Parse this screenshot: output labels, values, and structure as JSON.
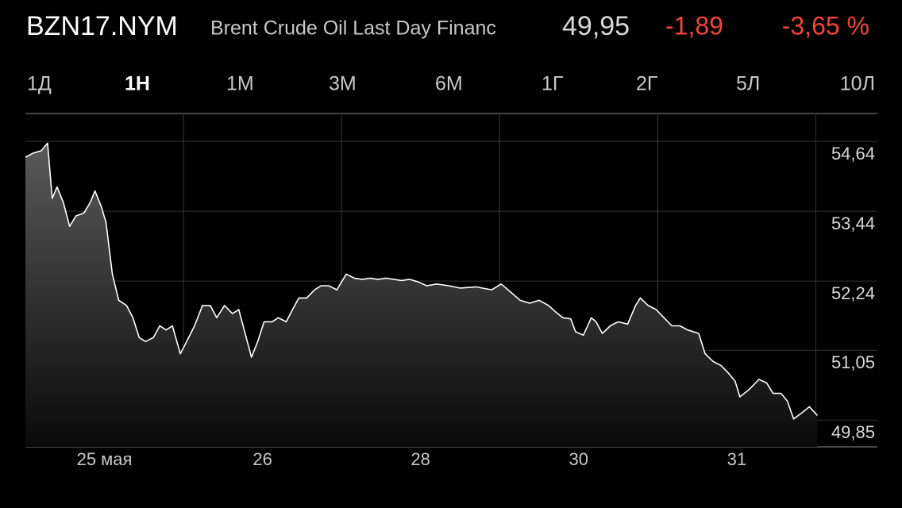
{
  "header": {
    "symbol": "BZN17.NYM",
    "name": "Brent Crude Oil Last Day Financ",
    "price": "49,95",
    "change": "-1,89",
    "change_percent": "-3,65 %"
  },
  "ranges": [
    "1Д",
    "1Н",
    "1М",
    "3М",
    "6М",
    "1Г",
    "2Г",
    "5Л",
    "10Л"
  ],
  "selected_range": "1Н",
  "chart_data": {
    "type": "line",
    "x_bands": [
      "25 мая",
      "26",
      "28",
      "30",
      "31"
    ],
    "xlim": [
      0,
      5.39
    ],
    "ylim": [
      49.39,
      55.12
    ],
    "yticks": [
      {
        "value": 54.64,
        "label": "54,64"
      },
      {
        "value": 53.44,
        "label": "53,44"
      },
      {
        "value": 52.24,
        "label": "52,24"
      },
      {
        "value": 51.05,
        "label": "51,05"
      },
      {
        "value": 49.85,
        "label": "49,85"
      }
    ],
    "grid": true,
    "series": [
      {
        "color": "#ffffff",
        "x": [
          0,
          0.05,
          0.1,
          0.14,
          0.17,
          0.2,
          0.24,
          0.28,
          0.32,
          0.37,
          0.41,
          0.44,
          0.48,
          0.51,
          0.55,
          0.59,
          0.64,
          0.68,
          0.72,
          0.76,
          0.81,
          0.85,
          0.89,
          0.93,
          0.98,
          1.02,
          1.07,
          1.12,
          1.17,
          1.21,
          1.26,
          1.31,
          1.35,
          1.39,
          1.43,
          1.47,
          1.51,
          1.56,
          1.6,
          1.65,
          1.69,
          1.73,
          1.78,
          1.83,
          1.87,
          1.92,
          1.97,
          2.03,
          2.08,
          2.13,
          2.18,
          2.23,
          2.28,
          2.33,
          2.38,
          2.43,
          2.48,
          2.54,
          2.6,
          2.68,
          2.75,
          2.85,
          2.95,
          3.01,
          3.07,
          3.13,
          3.19,
          3.25,
          3.31,
          3.35,
          3.4,
          3.45,
          3.48,
          3.53,
          3.58,
          3.61,
          3.65,
          3.7,
          3.75,
          3.81,
          3.86,
          3.89,
          3.94,
          3.99,
          4.04,
          4.09,
          4.14,
          4.19,
          4.26,
          4.3,
          4.35,
          4.4,
          4.45,
          4.49,
          4.52,
          4.58,
          4.64,
          4.69,
          4.73,
          4.78,
          4.82,
          4.86,
          4.91,
          4.96,
          5.01
        ],
        "values": [
          54.37,
          54.44,
          54.48,
          54.61,
          53.66,
          53.86,
          53.59,
          53.18,
          53.36,
          53.41,
          53.59,
          53.79,
          53.52,
          53.25,
          52.36,
          51.91,
          51.82,
          51.61,
          51.27,
          51.2,
          51.27,
          51.47,
          51.4,
          51.47,
          50.99,
          51.2,
          51.47,
          51.82,
          51.82,
          51.61,
          51.82,
          51.68,
          51.75,
          51.34,
          50.93,
          51.2,
          51.54,
          51.54,
          51.61,
          51.54,
          51.75,
          51.95,
          51.95,
          52.09,
          52.16,
          52.16,
          52.09,
          52.36,
          52.29,
          52.27,
          52.29,
          52.27,
          52.29,
          52.27,
          52.25,
          52.27,
          52.23,
          52.16,
          52.19,
          52.16,
          52.12,
          52.14,
          52.09,
          52.19,
          52.05,
          51.91,
          51.86,
          51.91,
          51.82,
          51.72,
          51.61,
          51.59,
          51.37,
          51.31,
          51.61,
          51.54,
          51.34,
          51.47,
          51.54,
          51.5,
          51.82,
          51.95,
          51.82,
          51.75,
          51.61,
          51.47,
          51.47,
          51.4,
          51.34,
          50.99,
          50.86,
          50.79,
          50.65,
          50.52,
          50.25,
          50.38,
          50.55,
          50.49,
          50.31,
          50.31,
          50.18,
          49.87,
          49.97,
          50.08,
          49.93
        ]
      }
    ]
  }
}
